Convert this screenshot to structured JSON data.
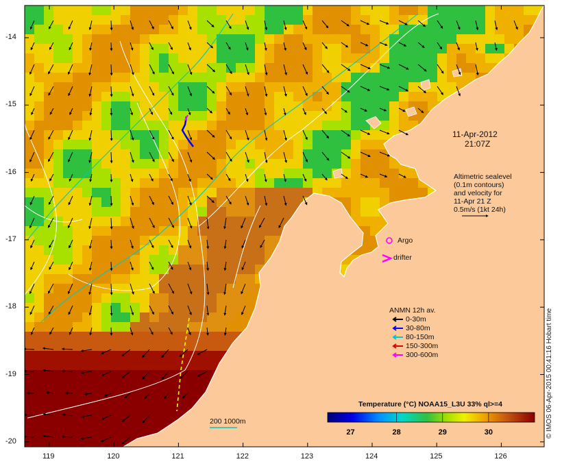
{
  "map": {
    "date_line1": "11-Apr-2012",
    "date_line2": "21:07Z",
    "lat_ticks": [
      "-14",
      "-15",
      "-16",
      "-17",
      "-18",
      "-19",
      "-20"
    ],
    "lon_ticks": [
      "119",
      "120",
      "121",
      "122",
      "123",
      "124",
      "125",
      "126"
    ],
    "altimetry_lines": [
      "Altimetric sealevel",
      "(0.1m contours)",
      "and velocity for",
      "11-Apr 21 Z",
      "0.5m/s (1kt 24h)"
    ],
    "argo_label": "Argo",
    "drifter_label": "drifter",
    "anmn_title": "ANMN 12h av.",
    "anmn_depths": [
      {
        "label": "0-30m",
        "color": "#000000"
      },
      {
        "label": "30-80m",
        "color": "#0000ff"
      },
      {
        "label": "80-150m",
        "color": "#00c8c8"
      },
      {
        "label": "150-300m",
        "color": "#e00000"
      },
      {
        "label": "300-600m",
        "color": "#ff00ff"
      }
    ],
    "isobath_label": "200  1000m",
    "colorbar_title": "Temperature (°C) NOAA15_L3U 33% ql>=4",
    "colorbar_ticks": [
      "27",
      "28",
      "29",
      "30"
    ],
    "colorbar_range": [
      26.5,
      31.0
    ],
    "credit": "© IMOS 06-Apr-2015 00:41:16 Hobart time",
    "colors": {
      "land": "#fbc99a",
      "argo": "#ff00ff",
      "drifter": "#ff00ff",
      "isobath": "#00c8c8"
    }
  }
}
